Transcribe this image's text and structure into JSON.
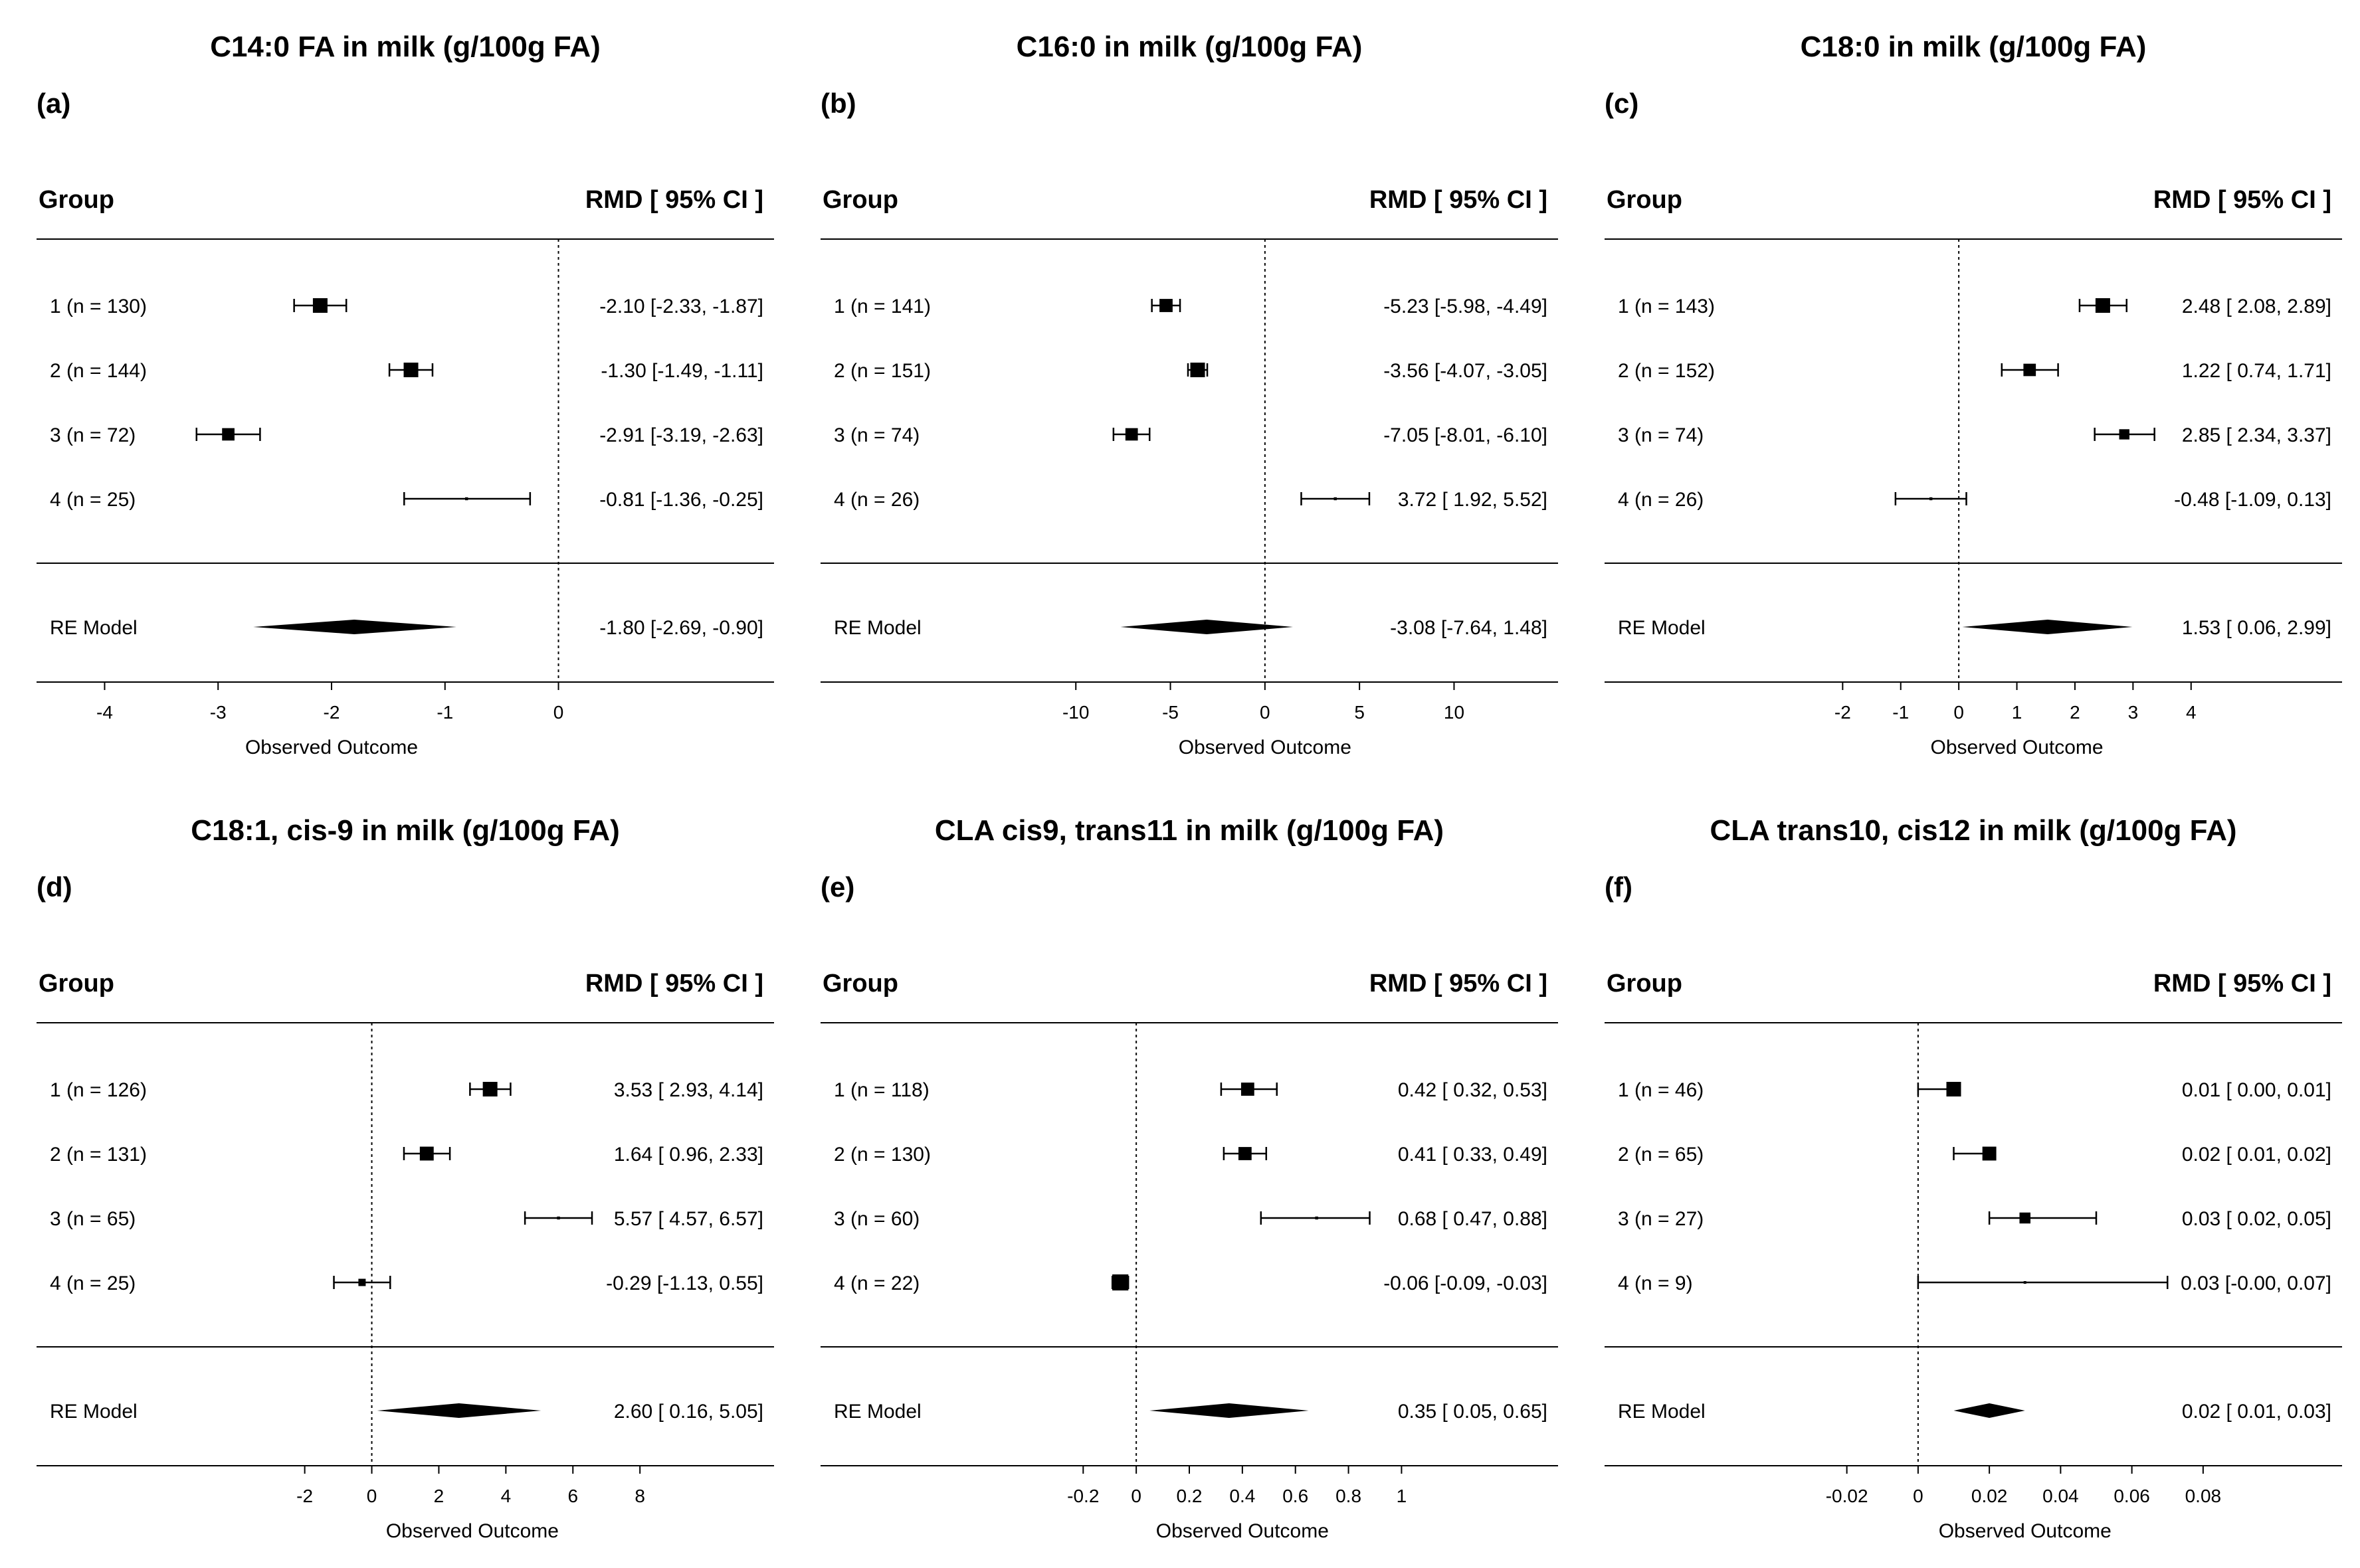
{
  "chart_data": [
    {
      "type": "forest",
      "panel_label": "(a)",
      "title": "C14:0 FA in milk  (g/100g FA)",
      "col_group": "Group",
      "col_stat": "RMD  [ 95% CI ]",
      "xlabel": "Observed Outcome",
      "xlim": [
        -4.6,
        1.9
      ],
      "xticks": [
        -4,
        -3,
        -2,
        -1,
        0
      ],
      "tick_labels": [
        "-4",
        "-3",
        "-2",
        "-1",
        "0"
      ],
      "rows": [
        {
          "label": "1 (n = 130)",
          "est": -2.1,
          "lo": -2.33,
          "hi": -1.87,
          "text": "-2.10 [-2.33, -1.87]",
          "box": 1.0
        },
        {
          "label": "2 (n = 144)",
          "est": -1.3,
          "lo": -1.49,
          "hi": -1.11,
          "text": "-1.30 [-1.49, -1.11]",
          "box": 1.0
        },
        {
          "label": "3 (n = 72)",
          "est": -2.91,
          "lo": -3.19,
          "hi": -2.63,
          "text": "-2.91 [-3.19, -2.63]",
          "box": 0.85
        },
        {
          "label": "4 (n = 25)",
          "est": -0.81,
          "lo": -1.36,
          "hi": -0.25,
          "text": "-0.81 [-1.36, -0.25]",
          "box": 0.2
        }
      ],
      "summary": {
        "label": "RE Model",
        "est": -1.8,
        "lo": -2.69,
        "hi": -0.9,
        "text": "-1.80 [-2.69, -0.90]"
      }
    },
    {
      "type": "forest",
      "panel_label": "(b)",
      "title": "C16:0 in milk  (g/100g FA)",
      "col_group": "Group",
      "col_stat": "RMD  [ 95% CI ]",
      "xlabel": "Observed Outcome",
      "xlim": [
        -23.5,
        15.5
      ],
      "xticks": [
        -10,
        -5,
        0,
        5,
        10
      ],
      "tick_labels": [
        "-10",
        "-5",
        "0",
        "5",
        "10"
      ],
      "rows": [
        {
          "label": "1 (n = 141)",
          "est": -5.23,
          "lo": -5.98,
          "hi": -4.49,
          "text": "-5.23 [-5.98, -4.49]",
          "box": 0.9
        },
        {
          "label": "2 (n = 151)",
          "est": -3.56,
          "lo": -4.07,
          "hi": -3.05,
          "text": "-3.56 [-4.07, -3.05]",
          "box": 1.0
        },
        {
          "label": "3 (n = 74)",
          "est": -7.05,
          "lo": -8.01,
          "hi": -6.1,
          "text": "-7.05 [-8.01, -6.10]",
          "box": 0.85
        },
        {
          "label": "4 (n = 26)",
          "est": 3.72,
          "lo": 1.92,
          "hi": 5.52,
          "text": "3.72 [ 1.92,  5.52]",
          "box": 0.2
        }
      ],
      "summary": {
        "label": "RE Model",
        "est": -3.08,
        "lo": -7.64,
        "hi": 1.48,
        "text": "-3.08 [-7.64,  1.48]"
      }
    },
    {
      "type": "forest",
      "panel_label": "(c)",
      "title": "C18:0 in milk (g/100g FA)",
      "col_group": "Group",
      "col_stat": "RMD  [ 95% CI ]",
      "xlabel": "Observed Outcome",
      "xlim": [
        -6.1,
        6.6
      ],
      "xticks": [
        -2,
        -1,
        0,
        1,
        2,
        3,
        4
      ],
      "tick_labels": [
        "-2",
        "-1",
        "0",
        "1",
        "2",
        "3",
        "4"
      ],
      "rows": [
        {
          "label": "1 (n = 143)",
          "est": 2.48,
          "lo": 2.08,
          "hi": 2.89,
          "text": "2.48 [ 2.08,  2.89]",
          "box": 1.0
        },
        {
          "label": "2 (n = 152)",
          "est": 1.22,
          "lo": 0.74,
          "hi": 1.71,
          "text": "1.22 [ 0.74,  1.71]",
          "box": 0.85
        },
        {
          "label": "3 (n = 74)",
          "est": 2.85,
          "lo": 2.34,
          "hi": 3.37,
          "text": "2.85 [ 2.34,  3.37]",
          "box": 0.7
        },
        {
          "label": "4 (n = 26)",
          "est": -0.48,
          "lo": -1.09,
          "hi": 0.13,
          "text": "-0.48 [-1.09,  0.13]",
          "box": 0.2
        }
      ],
      "summary": {
        "label": "RE Model",
        "est": 1.53,
        "lo": 0.06,
        "hi": 2.99,
        "text": "1.53 [ 0.06,  2.99]"
      }
    },
    {
      "type": "forest",
      "panel_label": "(d)",
      "title": "C18:1, cis-9 in milk (g/100g FA)",
      "col_group": "Group",
      "col_stat": "RMD  [ 95% CI ]",
      "xlabel": "Observed Outcome",
      "xlim": [
        -10.0,
        12.0
      ],
      "xticks": [
        -2,
        0,
        2,
        4,
        6,
        8
      ],
      "tick_labels": [
        "-2",
        "0",
        "2",
        "4",
        "6",
        "8"
      ],
      "rows": [
        {
          "label": "1 (n = 126)",
          "est": 3.53,
          "lo": 2.93,
          "hi": 4.14,
          "text": "3.53 [ 2.93,  4.14]",
          "box": 1.0
        },
        {
          "label": "2 (n = 131)",
          "est": 1.64,
          "lo": 0.96,
          "hi": 2.33,
          "text": "1.64 [ 0.96,  2.33]",
          "box": 0.95
        },
        {
          "label": "3 (n = 65)",
          "est": 5.57,
          "lo": 4.57,
          "hi": 6.57,
          "text": "5.57 [ 4.57,  6.57]",
          "box": 0.2
        },
        {
          "label": "4 (n = 25)",
          "est": -0.29,
          "lo": -1.13,
          "hi": 0.55,
          "text": "-0.29 [-1.13,  0.55]",
          "box": 0.5
        }
      ],
      "summary": {
        "label": "RE Model",
        "est": 2.6,
        "lo": 0.16,
        "hi": 5.05,
        "text": "2.60 [ 0.16,  5.05]"
      }
    },
    {
      "type": "forest",
      "panel_label": "(e)",
      "title": "CLA cis9, trans11 in milk (g/100g FA)",
      "col_group": "Group",
      "col_stat": "RMD  [ 95% CI ]",
      "xlabel": "Observed Outcome",
      "xlim": [
        -1.19,
        1.59
      ],
      "xticks": [
        -0.2,
        0,
        0.2,
        0.4,
        0.6,
        0.8,
        1
      ],
      "tick_labels": [
        "-0.2",
        "0",
        "0.2",
        "0.4",
        "0.6",
        "0.8",
        "1"
      ],
      "rows": [
        {
          "label": "1 (n = 118)",
          "est": 0.42,
          "lo": 0.32,
          "hi": 0.53,
          "text": "0.42 [ 0.32,  0.53]",
          "box": 0.9
        },
        {
          "label": "2 (n = 130)",
          "est": 0.41,
          "lo": 0.33,
          "hi": 0.49,
          "text": "0.41 [ 0.33,  0.49]",
          "box": 0.9
        },
        {
          "label": "3 (n = 60)",
          "est": 0.68,
          "lo": 0.47,
          "hi": 0.88,
          "text": "0.68 [ 0.47,  0.88]",
          "box": 0.2
        },
        {
          "label": "4 (n = 22)",
          "est": -0.06,
          "lo": -0.09,
          "hi": -0.03,
          "text": "-0.06 [-0.09, -0.03]",
          "box": 1.1
        }
      ],
      "summary": {
        "label": "RE Model",
        "est": 0.35,
        "lo": 0.05,
        "hi": 0.65,
        "text": "0.35 [ 0.05,  0.65]"
      }
    },
    {
      "type": "forest",
      "panel_label": "(f)",
      "title": "CLA trans10, cis12 in milk (g/100g FA)",
      "col_group": "Group",
      "col_stat": "RMD  [ 95% CI ]",
      "xlabel": "Observed Outcome",
      "xlim": [
        -0.088,
        0.119
      ],
      "xticks": [
        -0.02,
        0,
        0.02,
        0.04,
        0.06,
        0.08
      ],
      "tick_labels": [
        "-0.02",
        "0",
        "0.02",
        "0.04",
        "0.06",
        "0.08"
      ],
      "rows": [
        {
          "label": "1 (n = 46)",
          "est": 0.01,
          "lo": 0.0,
          "hi": 0.01,
          "text": "0.01 [ 0.00,  0.01]",
          "box": 1.0
        },
        {
          "label": "2 (n = 65)",
          "est": 0.02,
          "lo": 0.01,
          "hi": 0.02,
          "text": "0.02 [ 0.01,  0.02]",
          "box": 0.95
        },
        {
          "label": "3 (n = 27)",
          "est": 0.03,
          "lo": 0.02,
          "hi": 0.05,
          "text": "0.03 [ 0.02,  0.05]",
          "box": 0.75
        },
        {
          "label": "4 (n = 9)",
          "est": 0.03,
          "lo": -0.0,
          "hi": 0.07,
          "text": "0.03 [-0.00,  0.07]",
          "box": 0.15
        }
      ],
      "summary": {
        "label": "RE Model",
        "est": 0.02,
        "lo": 0.01,
        "hi": 0.03,
        "text": "0.02 [ 0.01,  0.03]"
      }
    }
  ]
}
